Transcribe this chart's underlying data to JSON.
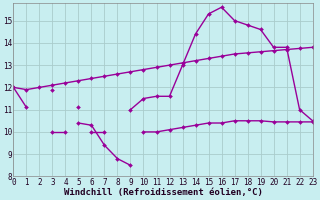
{
  "x": [
    0,
    1,
    2,
    3,
    4,
    5,
    6,
    7,
    8,
    9,
    10,
    11,
    12,
    13,
    14,
    15,
    16,
    17,
    18,
    19,
    20,
    21,
    22,
    23
  ],
  "line1": [
    12.0,
    11.1,
    null,
    11.9,
    null,
    11.1,
    null,
    null,
    null,
    11.0,
    11.5,
    11.6,
    11.6,
    13.0,
    14.4,
    15.3,
    15.6,
    15.0,
    14.8,
    14.6,
    13.8,
    13.8,
    11.0,
    10.5
  ],
  "line2": [
    null,
    null,
    null,
    10.0,
    10.0,
    null,
    10.0,
    10.0,
    null,
    null,
    10.0,
    10.0,
    10.1,
    10.2,
    10.3,
    10.4,
    10.4,
    10.5,
    10.5,
    10.5,
    10.45,
    10.45,
    10.45,
    10.45
  ],
  "line3": [
    12.0,
    11.9,
    12.0,
    12.1,
    12.2,
    12.3,
    12.4,
    12.5,
    12.6,
    12.7,
    12.8,
    12.9,
    13.0,
    13.1,
    13.2,
    13.3,
    13.4,
    13.5,
    13.55,
    13.6,
    13.65,
    13.7,
    13.75,
    13.8
  ],
  "line4": [
    null,
    null,
    null,
    null,
    null,
    10.4,
    10.3,
    9.4,
    8.8,
    8.5,
    null,
    null,
    null,
    null,
    null,
    null,
    null,
    null,
    null,
    null,
    null,
    null,
    null,
    null
  ],
  "color": "#990099",
  "bg_color": "#c8eef0",
  "grid_color": "#aacccc",
  "xlabel": "Windchill (Refroidissement éolien,°C)",
  "xlim": [
    0,
    23
  ],
  "ylim": [
    8,
    15.8
  ],
  "yticks": [
    8,
    9,
    10,
    11,
    12,
    13,
    14,
    15
  ],
  "xticks": [
    0,
    1,
    2,
    3,
    4,
    5,
    6,
    7,
    8,
    9,
    10,
    11,
    12,
    13,
    14,
    15,
    16,
    17,
    18,
    19,
    20,
    21,
    22,
    23
  ],
  "xlabel_fontsize": 6.5,
  "tick_fontsize": 5.5,
  "line_width": 1.0,
  "marker": "D",
  "marker_size": 2.0
}
